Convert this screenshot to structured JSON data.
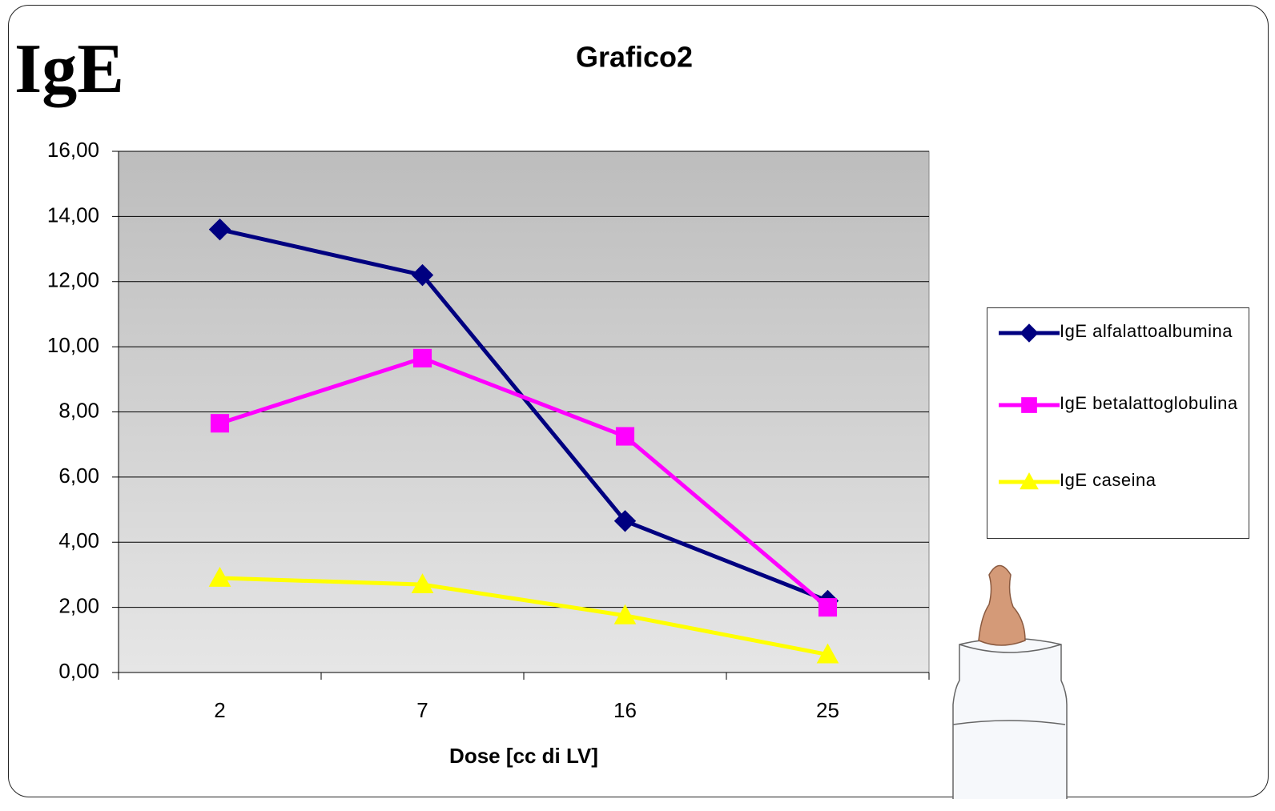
{
  "heading": "IgE",
  "chart_data": {
    "type": "line",
    "title": "Grafico2",
    "x_label": "Dose [cc di LV]",
    "categories": [
      "2",
      "7",
      "16",
      "25"
    ],
    "series": [
      {
        "name": "IgE alfalattoalbumina",
        "color": "#000080",
        "marker": "diamond",
        "values": [
          13.6,
          12.2,
          4.65,
          2.2
        ]
      },
      {
        "name": "IgE betalattoglobulina",
        "color": "#ff00ff",
        "marker": "square",
        "values": [
          7.65,
          9.65,
          7.25,
          2.0
        ]
      },
      {
        "name": "IgE caseina",
        "color": "#ffff00",
        "marker": "triangle",
        "values": [
          2.9,
          2.7,
          1.75,
          0.55
        ]
      }
    ],
    "ylim": [
      0,
      16
    ],
    "yticks": [
      {
        "value": 0,
        "label": "0,00"
      },
      {
        "value": 2,
        "label": "2,00"
      },
      {
        "value": 4,
        "label": "4,00"
      },
      {
        "value": 6,
        "label": "6,00"
      },
      {
        "value": 8,
        "label": "8,00"
      },
      {
        "value": 10,
        "label": "10,00"
      },
      {
        "value": 12,
        "label": "12,00"
      },
      {
        "value": 14,
        "label": "14,00"
      },
      {
        "value": 16,
        "label": "16,00"
      }
    ],
    "grid": true,
    "legend": "right"
  }
}
